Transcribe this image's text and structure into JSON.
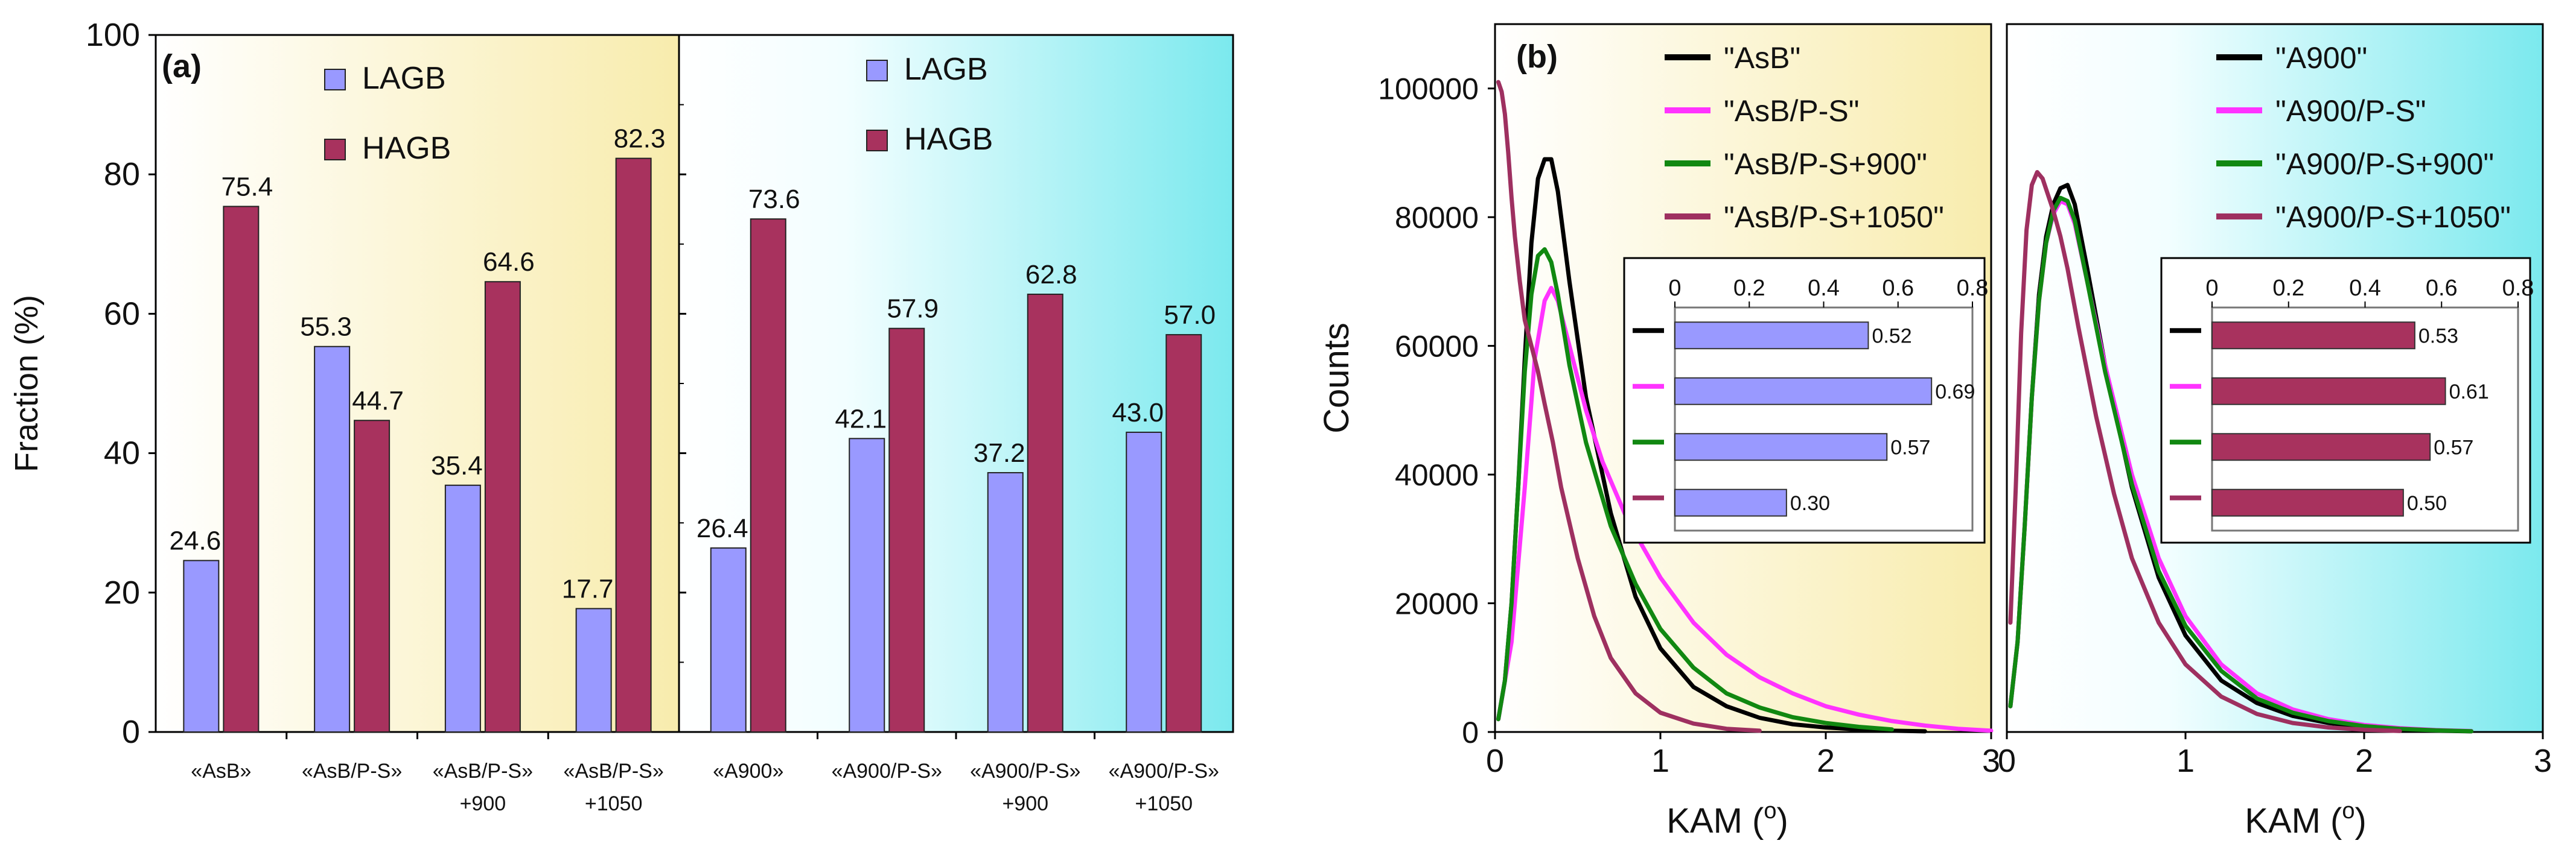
{
  "chart_data": [
    {
      "type": "bar",
      "panel": "(a)",
      "ylabel": "Fraction (%)",
      "ylim": [
        0,
        100
      ],
      "yticks": [
        0,
        20,
        40,
        60,
        80,
        100
      ],
      "legend": [
        "LAGB",
        "HAGB"
      ],
      "colors": {
        "LAGB": "#9999ff",
        "HAGB": "#a8325e"
      },
      "groups": [
        {
          "categories": [
            [
              "«AsB»"
            ],
            [
              "«AsB/P-S»"
            ],
            [
              "«AsB/P-S»",
              "+900"
            ],
            [
              "«AsB/P-S»",
              "+1050"
            ]
          ],
          "series": [
            {
              "name": "LAGB",
              "values": [
                24.6,
                55.3,
                35.4,
                17.7
              ],
              "labels": [
                "24.6",
                "55.3",
                "35.4",
                "17.7"
              ]
            },
            {
              "name": "HAGB",
              "values": [
                75.4,
                44.7,
                64.6,
                82.3
              ],
              "labels": [
                "75.4",
                "44.7",
                "64.6",
                "82.3"
              ]
            }
          ]
        },
        {
          "categories": [
            [
              "«A900»"
            ],
            [
              "«A900/P-S»"
            ],
            [
              "«A900/P-S»",
              "+900"
            ],
            [
              "«A900/P-S»",
              "+1050"
            ]
          ],
          "series": [
            {
              "name": "LAGB",
              "values": [
                26.4,
                42.1,
                37.2,
                43.0
              ],
              "labels": [
                "26.4",
                "42.1",
                "37.2",
                "43.0"
              ]
            },
            {
              "name": "HAGB",
              "values": [
                73.6,
                57.9,
                62.8,
                57.0
              ],
              "labels": [
                "73.6",
                "57.9",
                "62.8",
                "57.0"
              ]
            }
          ]
        }
      ]
    },
    {
      "type": "line",
      "panel": "(b)",
      "ylabel": "Counts",
      "xlabel_text": "KAM (",
      "xlabel_sup": "o",
      "xlabel_close": ")",
      "xlim": [
        0,
        3
      ],
      "ylim": [
        0,
        110000
      ],
      "xticks": [
        0,
        1,
        2,
        3
      ],
      "yticks": [
        0,
        20000,
        40000,
        60000,
        80000,
        100000
      ],
      "yticklabels": [
        "0",
        "20000",
        "40000",
        "60000",
        "80000",
        "100000"
      ],
      "inset_xlim": [
        0,
        0.8
      ],
      "inset_xticks": [
        "0",
        "0.2",
        "0.4",
        "0.6",
        "0.8"
      ],
      "plots": [
        {
          "series": [
            {
              "name": "\"AsB\"",
              "color": "#000000",
              "x": [
                0.02,
                0.06,
                0.1,
                0.14,
                0.18,
                0.22,
                0.26,
                0.3,
                0.34,
                0.38,
                0.45,
                0.55,
                0.7,
                0.85,
                1.0,
                1.2,
                1.4,
                1.6,
                1.8,
                2.0,
                2.2,
                2.4,
                2.6
              ],
              "y": [
                2000,
                8000,
                20000,
                38000,
                58000,
                76000,
                86000,
                89000,
                89000,
                84000,
                70000,
                52000,
                34000,
                21000,
                13000,
                7000,
                4000,
                2200,
                1200,
                700,
                400,
                200,
                100
              ]
            },
            {
              "name": "\"AsB/P-S\"",
              "color": "#ff33ff",
              "x": [
                0.02,
                0.1,
                0.18,
                0.24,
                0.3,
                0.34,
                0.38,
                0.45,
                0.55,
                0.65,
                0.8,
                1.0,
                1.2,
                1.4,
                1.6,
                1.8,
                2.0,
                2.2,
                2.4,
                2.6,
                2.8,
                3.0
              ],
              "y": [
                2000,
                14000,
                38000,
                58000,
                67000,
                69000,
                67000,
                60000,
                50000,
                42000,
                33000,
                24000,
                17000,
                12000,
                8500,
                6000,
                4000,
                2700,
                1700,
                1000,
                500,
                200
              ]
            },
            {
              "name": "\"AsB/P-S+900\"",
              "color": "#118811",
              "x": [
                0.02,
                0.06,
                0.1,
                0.14,
                0.18,
                0.22,
                0.26,
                0.3,
                0.34,
                0.38,
                0.45,
                0.55,
                0.7,
                0.85,
                1.0,
                1.2,
                1.4,
                1.6,
                1.8,
                2.0,
                2.2,
                2.4
              ],
              "y": [
                2000,
                8000,
                20000,
                38000,
                56000,
                68000,
                74000,
                75000,
                73000,
                68000,
                57000,
                45000,
                32000,
                23000,
                16000,
                10000,
                6000,
                3800,
                2300,
                1400,
                800,
                400
              ]
            },
            {
              "name": "\"AsB/P-S+1050\"",
              "color": "#9e3060",
              "x": [
                0.02,
                0.04,
                0.06,
                0.08,
                0.1,
                0.12,
                0.15,
                0.18,
                0.22,
                0.26,
                0.3,
                0.35,
                0.4,
                0.5,
                0.6,
                0.7,
                0.85,
                1.0,
                1.2,
                1.4,
                1.6
              ],
              "y": [
                101000,
                99500,
                96000,
                90000,
                83000,
                77000,
                70000,
                64000,
                60000,
                56000,
                51000,
                45000,
                38000,
                27000,
                18000,
                11500,
                6000,
                3000,
                1300,
                500,
                200
              ]
            }
          ],
          "inset_values": [
            0.52,
            0.69,
            0.57,
            0.3
          ],
          "inset_labels": [
            "0.52",
            "0.69",
            "0.57",
            "0.30"
          ],
          "inset_color": "#9999ff"
        },
        {
          "series": [
            {
              "name": "\"A900\"",
              "color": "#000000",
              "x": [
                0.02,
                0.06,
                0.1,
                0.14,
                0.18,
                0.22,
                0.26,
                0.3,
                0.34,
                0.38,
                0.45,
                0.55,
                0.7,
                0.85,
                1.0,
                1.2,
                1.4,
                1.6,
                1.8,
                2.0,
                2.2,
                2.4,
                2.6
              ],
              "y": [
                4000,
                14000,
                32000,
                52000,
                68000,
                77000,
                82000,
                84500,
                85000,
                82000,
                72000,
                57000,
                38000,
                24000,
                15000,
                8000,
                4500,
                2500,
                1400,
                800,
                400,
                200,
                100
              ]
            },
            {
              "name": "\"A900/P-S\"",
              "color": "#ff33ff",
              "x": [
                0.02,
                0.06,
                0.1,
                0.14,
                0.18,
                0.22,
                0.26,
                0.3,
                0.34,
                0.38,
                0.45,
                0.55,
                0.7,
                0.85,
                1.0,
                1.2,
                1.4,
                1.6,
                1.8,
                2.0,
                2.2,
                2.4,
                2.6
              ],
              "y": [
                4000,
                14000,
                32000,
                52000,
                67000,
                76000,
                80500,
                82500,
                82000,
                79000,
                70000,
                57000,
                40000,
                27000,
                18000,
                10500,
                6000,
                3500,
                2000,
                1100,
                600,
                300,
                150
              ]
            },
            {
              "name": "\"A900/P-S+900\"",
              "color": "#118811",
              "x": [
                0.02,
                0.06,
                0.1,
                0.14,
                0.18,
                0.22,
                0.26,
                0.3,
                0.34,
                0.38,
                0.45,
                0.55,
                0.7,
                0.85,
                1.0,
                1.2,
                1.4,
                1.6,
                1.8,
                2.0,
                2.2,
                2.4,
                2.6
              ],
              "y": [
                4000,
                14000,
                32000,
                52000,
                67000,
                76000,
                81000,
                83000,
                82500,
                79500,
                70000,
                56000,
                38500,
                25000,
                16500,
                9500,
                5200,
                3000,
                1700,
                900,
                500,
                250,
                120
              ]
            },
            {
              "name": "\"A900/P-S+1050\"",
              "color": "#9e3060",
              "x": [
                0.02,
                0.05,
                0.08,
                0.11,
                0.14,
                0.17,
                0.2,
                0.23,
                0.26,
                0.3,
                0.34,
                0.4,
                0.5,
                0.6,
                0.7,
                0.85,
                1.0,
                1.2,
                1.4,
                1.6,
                1.8,
                2.0,
                2.2
              ],
              "y": [
                17000,
                38000,
                62000,
                78000,
                85000,
                87000,
                86000,
                83500,
                81000,
                77000,
                72000,
                63000,
                49000,
                37000,
                27000,
                17000,
                10500,
                5500,
                2800,
                1400,
                700,
                350,
                150
              ]
            }
          ],
          "inset_values": [
            0.53,
            0.61,
            0.57,
            0.5
          ],
          "inset_labels": [
            "0.53",
            "0.61",
            "0.57",
            "0.50"
          ],
          "inset_color": "#a8325e"
        }
      ]
    }
  ]
}
